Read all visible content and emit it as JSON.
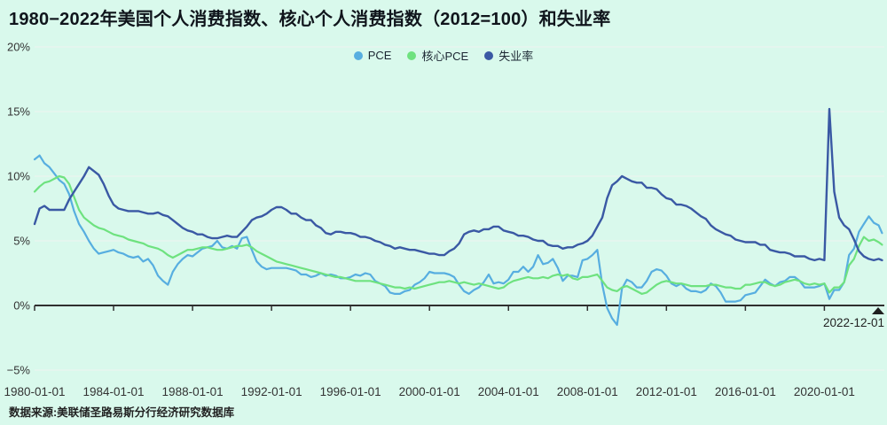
{
  "title": "1980−2022年美国个人消费指数、核心个人消费指数（2012=100）和失业率",
  "source": "数据来源:美联储圣路易斯分行经济研究数据库",
  "annotation": {
    "label": "2022-12-01"
  },
  "colors": {
    "background": "#d9f9ec",
    "grid": "#ebf4ef",
    "axis": "#2f2f2f",
    "text": "#333333",
    "title": "#10151c"
  },
  "chart_data": {
    "type": "line",
    "title": "1980−2022年美国个人消费指数、核心个人消费指数（2012=100）和失业率",
    "xlabel": "",
    "ylabel": "%",
    "xlim": [
      1980,
      2023
    ],
    "ylim": [
      -5,
      20
    ],
    "grid": true,
    "legend_position": "top-center",
    "x_start_year": 1980,
    "x_step_years": 0.25,
    "x_end_year": 2022.92,
    "y_ticks": [
      "20%",
      "15%",
      "10%",
      "5%",
      "0%",
      "−5%"
    ],
    "y_tick_values": [
      20,
      15,
      10,
      5,
      0,
      -5
    ],
    "x_ticks": [
      "1980-01-01",
      "1984-01-01",
      "1988-01-01",
      "1992-01-01",
      "1996-01-01",
      "2000-01-01",
      "2004-01-01",
      "2008-01-01",
      "2012-01-01",
      "2016-01-01",
      "2020-01-01"
    ],
    "x_tick_values": [
      1980,
      1984,
      1988,
      1992,
      1996,
      2000,
      2004,
      2008,
      2012,
      2016,
      2020
    ],
    "series": [
      {
        "id": "pce",
        "name": "PCE",
        "color": "#57aee0",
        "width": 2.2,
        "values": [
          11.3,
          11.6,
          11.0,
          10.7,
          10.2,
          9.7,
          9.4,
          8.6,
          7.3,
          6.3,
          5.7,
          5.0,
          4.4,
          4.0,
          4.1,
          4.2,
          4.3,
          4.1,
          4.0,
          3.8,
          3.7,
          3.8,
          3.4,
          3.6,
          3.1,
          2.3,
          1.9,
          1.6,
          2.6,
          3.2,
          3.6,
          3.9,
          3.8,
          4.1,
          4.4,
          4.5,
          4.6,
          5.0,
          4.5,
          4.4,
          4.6,
          4.4,
          5.2,
          5.3,
          4.3,
          3.4,
          3.0,
          2.8,
          2.9,
          2.9,
          2.9,
          2.9,
          2.8,
          2.7,
          2.4,
          2.4,
          2.2,
          2.3,
          2.5,
          2.3,
          2.4,
          2.3,
          2.1,
          2.1,
          2.2,
          2.4,
          2.3,
          2.5,
          2.4,
          1.9,
          1.7,
          1.5,
          1.0,
          0.9,
          0.9,
          1.1,
          1.2,
          1.6,
          1.8,
          2.1,
          2.6,
          2.5,
          2.5,
          2.5,
          2.4,
          2.2,
          1.6,
          1.1,
          0.9,
          1.2,
          1.4,
          1.8,
          2.4,
          1.7,
          1.8,
          1.7,
          2.0,
          2.6,
          2.6,
          3.0,
          2.6,
          3.0,
          3.9,
          3.2,
          3.3,
          3.6,
          2.9,
          1.9,
          2.3,
          2.3,
          2.2,
          3.5,
          3.6,
          3.9,
          4.3,
          1.6,
          -0.2,
          -1.0,
          -1.5,
          1.3,
          2.0,
          1.8,
          1.4,
          1.4,
          1.9,
          2.6,
          2.8,
          2.7,
          2.3,
          1.7,
          1.5,
          1.7,
          1.3,
          1.1,
          1.1,
          1.0,
          1.2,
          1.7,
          1.5,
          1.0,
          0.3,
          0.3,
          0.3,
          0.4,
          0.8,
          0.9,
          1.0,
          1.5,
          2.0,
          1.7,
          1.5,
          1.8,
          1.9,
          2.2,
          2.2,
          1.9,
          1.4,
          1.4,
          1.4,
          1.5,
          1.7,
          0.5,
          1.2,
          1.2,
          1.8,
          3.9,
          4.4,
          5.7,
          6.3,
          6.9,
          6.4,
          6.2,
          5.6
        ]
      },
      {
        "id": "core-pce",
        "name": "核心PCE",
        "color": "#6ee27f",
        "width": 2.2,
        "values": [
          8.8,
          9.2,
          9.5,
          9.6,
          9.8,
          10.0,
          9.9,
          9.4,
          8.4,
          7.4,
          6.8,
          6.5,
          6.2,
          6.0,
          5.9,
          5.7,
          5.5,
          5.4,
          5.3,
          5.1,
          5.0,
          4.9,
          4.8,
          4.6,
          4.5,
          4.4,
          4.2,
          3.9,
          3.7,
          3.9,
          4.1,
          4.3,
          4.3,
          4.4,
          4.5,
          4.5,
          4.4,
          4.3,
          4.3,
          4.4,
          4.5,
          4.6,
          4.6,
          4.7,
          4.5,
          4.2,
          4.0,
          3.8,
          3.6,
          3.4,
          3.3,
          3.2,
          3.1,
          3.0,
          2.9,
          2.8,
          2.7,
          2.6,
          2.5,
          2.4,
          2.3,
          2.2,
          2.2,
          2.1,
          2.0,
          1.9,
          1.9,
          1.9,
          1.9,
          1.8,
          1.7,
          1.6,
          1.5,
          1.4,
          1.4,
          1.3,
          1.4,
          1.3,
          1.4,
          1.5,
          1.6,
          1.7,
          1.8,
          1.8,
          1.9,
          1.8,
          1.7,
          1.8,
          1.7,
          1.6,
          1.7,
          1.6,
          1.5,
          1.4,
          1.3,
          1.4,
          1.7,
          1.9,
          2.0,
          2.1,
          2.2,
          2.1,
          2.1,
          2.2,
          2.1,
          2.3,
          2.4,
          2.3,
          2.4,
          2.1,
          2.0,
          2.2,
          2.2,
          2.3,
          2.4,
          1.9,
          1.4,
          1.2,
          1.1,
          1.4,
          1.5,
          1.3,
          1.1,
          0.9,
          1.0,
          1.3,
          1.6,
          1.8,
          1.9,
          1.8,
          1.7,
          1.7,
          1.6,
          1.5,
          1.5,
          1.5,
          1.5,
          1.6,
          1.6,
          1.5,
          1.4,
          1.4,
          1.3,
          1.3,
          1.6,
          1.6,
          1.7,
          1.8,
          1.8,
          1.6,
          1.5,
          1.6,
          1.8,
          1.9,
          2.0,
          1.9,
          1.7,
          1.6,
          1.7,
          1.6,
          1.7,
          1.0,
          1.4,
          1.4,
          1.8,
          3.1,
          3.6,
          4.6,
          5.3,
          5.0,
          5.1,
          4.9,
          4.7
        ]
      },
      {
        "id": "unemployment",
        "name": "失业率",
        "color": "#3a59a4",
        "width": 2.4,
        "values": [
          6.3,
          7.5,
          7.7,
          7.4,
          7.4,
          7.4,
          7.4,
          8.2,
          8.8,
          9.4,
          10.0,
          10.7,
          10.4,
          10.1,
          9.4,
          8.5,
          7.8,
          7.5,
          7.4,
          7.3,
          7.3,
          7.3,
          7.2,
          7.1,
          7.1,
          7.2,
          7.0,
          6.9,
          6.6,
          6.3,
          6.0,
          5.8,
          5.7,
          5.5,
          5.5,
          5.3,
          5.2,
          5.2,
          5.3,
          5.4,
          5.3,
          5.3,
          5.7,
          6.1,
          6.6,
          6.8,
          6.9,
          7.1,
          7.4,
          7.6,
          7.6,
          7.4,
          7.1,
          7.1,
          6.8,
          6.6,
          6.6,
          6.2,
          6.0,
          5.6,
          5.5,
          5.7,
          5.7,
          5.6,
          5.6,
          5.5,
          5.3,
          5.3,
          5.2,
          5.0,
          4.9,
          4.7,
          4.6,
          4.4,
          4.5,
          4.4,
          4.3,
          4.3,
          4.2,
          4.1,
          4.0,
          4.0,
          3.9,
          3.9,
          4.2,
          4.4,
          4.8,
          5.5,
          5.7,
          5.8,
          5.7,
          5.9,
          5.9,
          6.1,
          6.1,
          5.8,
          5.7,
          5.6,
          5.4,
          5.4,
          5.3,
          5.1,
          5.0,
          5.0,
          4.7,
          4.6,
          4.6,
          4.4,
          4.5,
          4.5,
          4.7,
          4.8,
          5.0,
          5.4,
          6.1,
          6.8,
          8.3,
          9.3,
          9.6,
          10.0,
          9.8,
          9.6,
          9.5,
          9.5,
          9.1,
          9.1,
          9.0,
          8.6,
          8.3,
          8.2,
          7.8,
          7.8,
          7.7,
          7.5,
          7.2,
          6.9,
          6.7,
          6.2,
          5.9,
          5.7,
          5.5,
          5.4,
          5.1,
          5.0,
          4.9,
          4.9,
          4.9,
          4.7,
          4.7,
          4.3,
          4.2,
          4.1,
          4.1,
          4.0,
          3.8,
          3.8,
          3.8,
          3.6,
          3.5,
          3.6,
          3.5,
          15.2,
          8.8,
          6.8,
          6.2,
          5.9,
          5.1,
          4.2,
          3.8,
          3.6,
          3.5,
          3.6,
          3.5
        ]
      }
    ]
  }
}
